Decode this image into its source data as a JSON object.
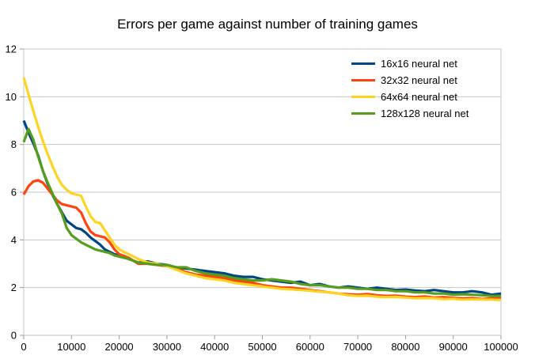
{
  "colors": {
    "background": "#ffffff",
    "grid": "#c6c6c6",
    "axis_border": "#c6c6c6",
    "tick_mark": "#999999",
    "label_text": "#000000"
  },
  "chart_data": {
    "type": "line",
    "title": "Errors per game against number of training games",
    "xlabel": "",
    "ylabel": "",
    "xlim": [
      0,
      100000
    ],
    "ylim": [
      0,
      12
    ],
    "x_ticks": [
      0,
      10000,
      20000,
      30000,
      40000,
      50000,
      60000,
      70000,
      80000,
      90000,
      100000
    ],
    "y_ticks": [
      0,
      2,
      4,
      6,
      8,
      10,
      12
    ],
    "grid": true,
    "legend_position": "top-right-inside",
    "line_width": 3.2,
    "x": [
      0,
      1000,
      2000,
      3000,
      4000,
      5000,
      6000,
      7000,
      8000,
      9000,
      10000,
      11000,
      12000,
      13000,
      14000,
      15000,
      16000,
      17000,
      18000,
      19000,
      20000,
      22000,
      24000,
      26000,
      28000,
      30000,
      32000,
      34000,
      36000,
      38000,
      40000,
      42000,
      44000,
      46000,
      48000,
      50000,
      52000,
      54000,
      56000,
      58000,
      60000,
      62000,
      64000,
      66000,
      68000,
      70000,
      72000,
      74000,
      76000,
      78000,
      80000,
      82000,
      84000,
      86000,
      88000,
      90000,
      92000,
      94000,
      96000,
      98000,
      100000
    ],
    "series": [
      {
        "name": "16x16 neural net",
        "color": "#004586",
        "values": [
          9.0,
          8.5,
          8.05,
          7.55,
          6.9,
          6.35,
          5.9,
          5.5,
          5.15,
          4.8,
          4.65,
          4.5,
          4.45,
          4.3,
          4.1,
          3.95,
          3.8,
          3.6,
          3.5,
          3.4,
          3.35,
          3.2,
          3.05,
          3.1,
          3.0,
          2.95,
          2.85,
          2.8,
          2.75,
          2.7,
          2.65,
          2.6,
          2.5,
          2.45,
          2.45,
          2.35,
          2.3,
          2.25,
          2.2,
          2.25,
          2.1,
          2.15,
          2.05,
          2.0,
          2.05,
          2.0,
          1.95,
          2.0,
          1.95,
          1.9,
          1.92,
          1.88,
          1.85,
          1.9,
          1.85,
          1.8,
          1.8,
          1.85,
          1.8,
          1.7,
          1.75
        ]
      },
      {
        "name": "32x32 neural net",
        "color": "#ff420e",
        "values": [
          5.9,
          6.25,
          6.45,
          6.5,
          6.4,
          6.15,
          5.9,
          5.65,
          5.5,
          5.45,
          5.4,
          5.35,
          5.15,
          4.7,
          4.35,
          4.2,
          4.15,
          4.1,
          3.9,
          3.6,
          3.4,
          3.25,
          3.0,
          3.0,
          2.95,
          2.9,
          2.8,
          2.65,
          2.55,
          2.5,
          2.45,
          2.4,
          2.3,
          2.25,
          2.2,
          2.1,
          2.05,
          2.0,
          2.0,
          1.95,
          1.9,
          1.85,
          1.8,
          1.75,
          1.72,
          1.7,
          1.73,
          1.68,
          1.65,
          1.66,
          1.62,
          1.6,
          1.63,
          1.58,
          1.6,
          1.57,
          1.55,
          1.56,
          1.52,
          1.55,
          1.55
        ]
      },
      {
        "name": "64x64 neural net",
        "color": "#ffd320",
        "values": [
          10.8,
          10.1,
          9.4,
          8.75,
          8.15,
          7.6,
          7.1,
          6.65,
          6.3,
          6.1,
          5.95,
          5.9,
          5.85,
          5.4,
          5.0,
          4.75,
          4.7,
          4.4,
          4.1,
          3.8,
          3.6,
          3.4,
          3.2,
          3.05,
          3.0,
          2.9,
          2.75,
          2.6,
          2.5,
          2.4,
          2.35,
          2.3,
          2.2,
          2.15,
          2.1,
          2.05,
          2.0,
          1.95,
          1.93,
          1.9,
          1.87,
          1.83,
          1.8,
          1.75,
          1.68,
          1.65,
          1.66,
          1.62,
          1.6,
          1.61,
          1.58,
          1.55,
          1.56,
          1.55,
          1.52,
          1.53,
          1.5,
          1.51,
          1.5,
          1.5,
          1.48
        ]
      },
      {
        "name": "128x128 neural net",
        "color": "#579d1c",
        "values": [
          8.1,
          8.65,
          8.2,
          7.5,
          6.9,
          6.4,
          5.95,
          5.5,
          5.1,
          4.5,
          4.2,
          4.05,
          3.9,
          3.8,
          3.7,
          3.6,
          3.55,
          3.5,
          3.45,
          3.35,
          3.3,
          3.2,
          3.05,
          3.0,
          2.95,
          2.95,
          2.85,
          2.85,
          2.7,
          2.6,
          2.55,
          2.5,
          2.4,
          2.35,
          2.3,
          2.3,
          2.35,
          2.3,
          2.25,
          2.15,
          2.1,
          2.1,
          2.05,
          2.0,
          2.0,
          1.95,
          1.95,
          1.9,
          1.9,
          1.85,
          1.85,
          1.8,
          1.8,
          1.75,
          1.75,
          1.7,
          1.72,
          1.7,
          1.68,
          1.65,
          1.65
        ]
      }
    ]
  }
}
